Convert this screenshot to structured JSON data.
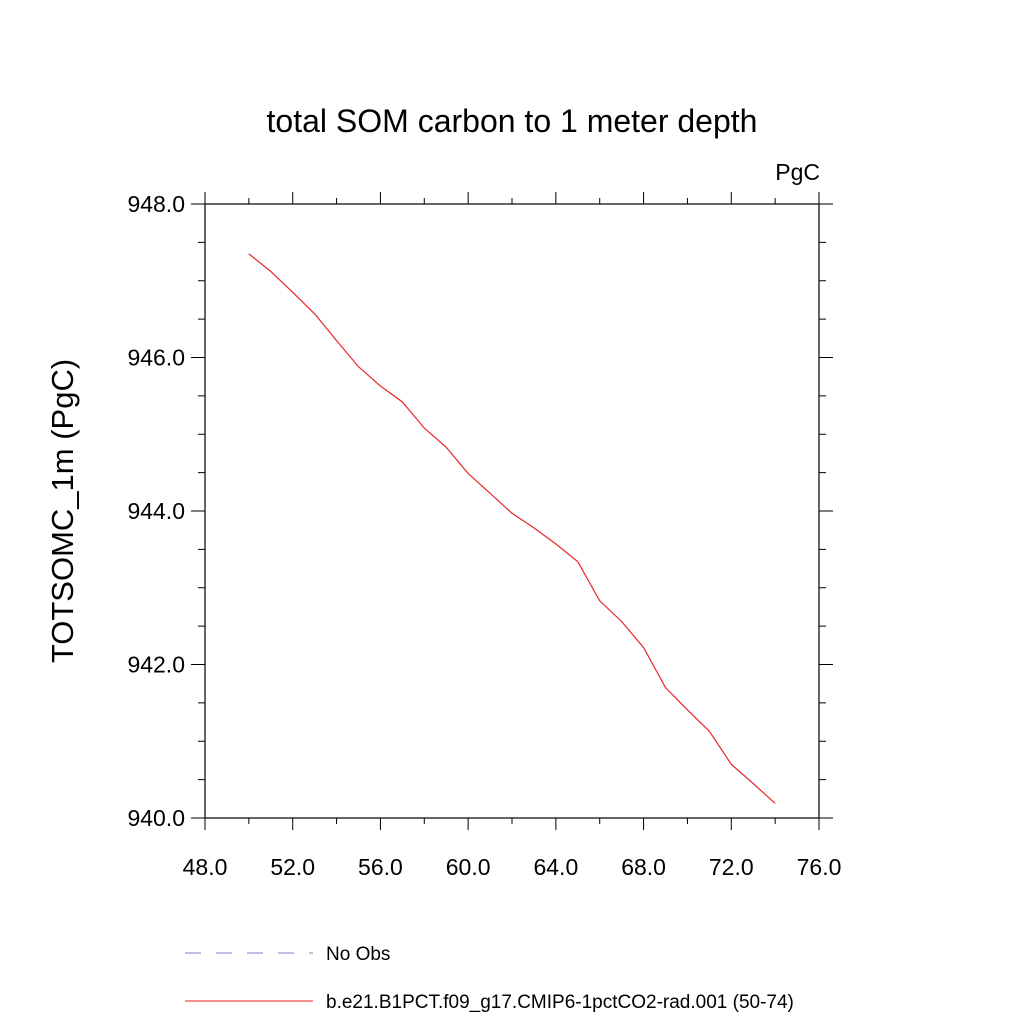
{
  "chart_data": {
    "type": "line",
    "title": "total SOM carbon to 1 meter depth",
    "units": "PgC",
    "xlabel": "",
    "ylabel": "TOTSOMC_1m  (PgC)",
    "xlim": [
      48,
      76
    ],
    "ylim": [
      940,
      948
    ],
    "xticks": [
      48,
      52,
      56,
      60,
      64,
      68,
      72,
      76
    ],
    "yticks": [
      940,
      942,
      944,
      946,
      948
    ],
    "xtick_labels": [
      "48.0",
      "52.0",
      "56.0",
      "60.0",
      "64.0",
      "68.0",
      "72.0",
      "76.0"
    ],
    "ytick_labels": [
      "940.0",
      "942.0",
      "944.0",
      "946.0",
      "948.0"
    ],
    "grid": false,
    "legend_position": "bottom",
    "series": [
      {
        "name": "No Obs",
        "color": "#8a7fc0",
        "dashed": true,
        "x": [],
        "y": []
      },
      {
        "name": "b.e21.B1PCT.f09_g17.CMIP6-1pctCO2-rad.001 (50-74)",
        "color": "#e8262a",
        "dashed": false,
        "x": [
          50,
          51,
          52,
          53,
          54,
          55,
          56,
          57,
          58,
          59,
          60,
          61,
          62,
          63,
          64,
          65,
          66,
          67,
          68,
          69,
          70,
          71,
          72,
          73,
          74
        ],
        "y": [
          947.35,
          947.12,
          946.85,
          946.57,
          946.22,
          945.88,
          945.63,
          945.42,
          945.08,
          944.83,
          944.49,
          944.23,
          943.97,
          943.78,
          943.57,
          943.34,
          942.83,
          942.56,
          942.22,
          941.7,
          941.41,
          941.13,
          940.7,
          940.45,
          940.19
        ]
      }
    ]
  }
}
